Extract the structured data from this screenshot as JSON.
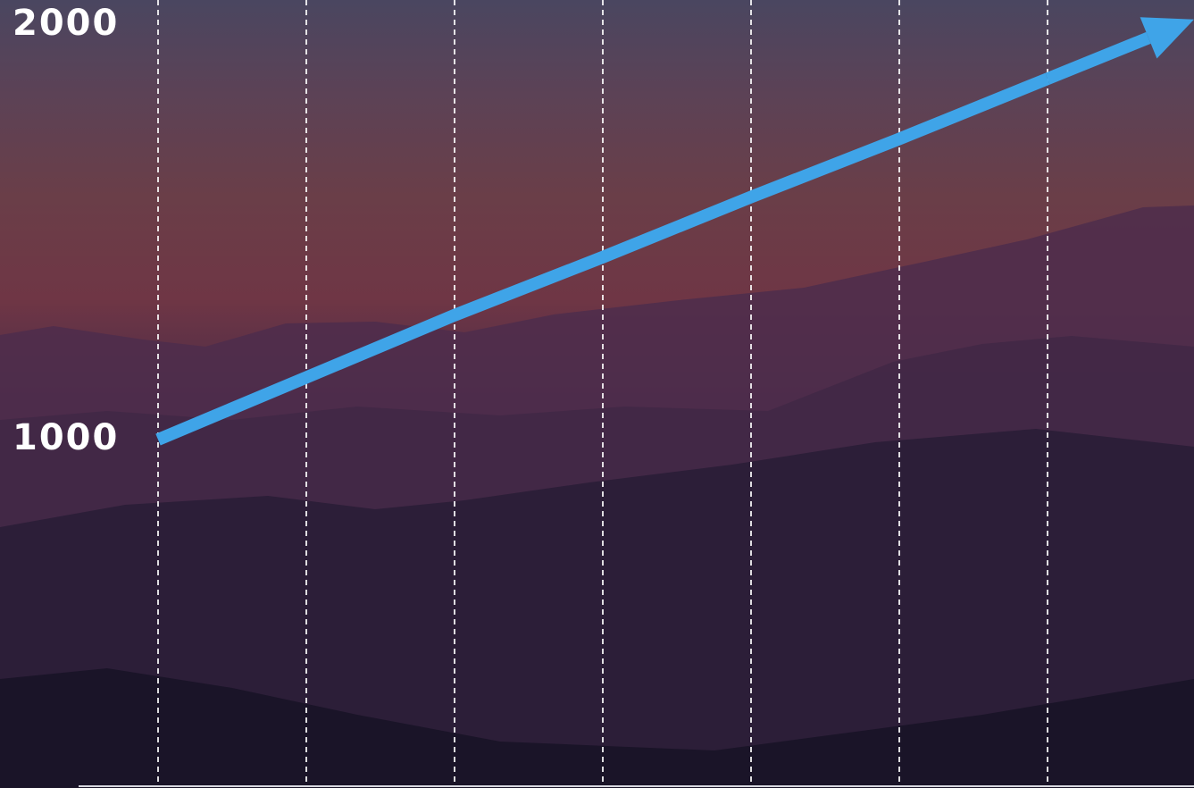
{
  "chart_data": {
    "type": "line",
    "categories": [
      null,
      null,
      null,
      null,
      null,
      null,
      null
    ],
    "series": [
      {
        "color": "#3fa4e8",
        "values": [
          1000,
          1150,
          1300,
          1440,
          1585,
          1725,
          1870
        ]
      }
    ],
    "ylim": [
      160,
      2060
    ],
    "yticks": [
      1000,
      2000
    ],
    "grid": true
  }
}
